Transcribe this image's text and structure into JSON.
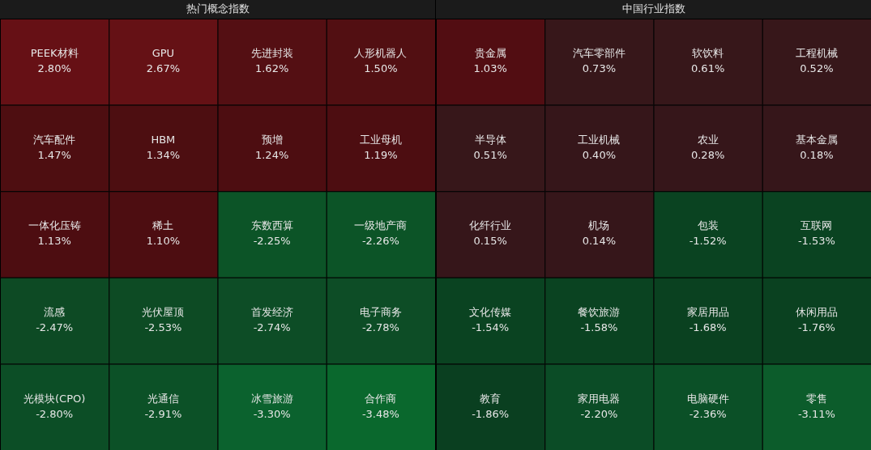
{
  "chart_data": [
    {
      "type": "other",
      "title": "热门概念指数",
      "categories": [
        "PEEK材料",
        "GPU",
        "先进封装",
        "人形机器人",
        "汽车配件",
        "HBM",
        "预增",
        "工业母机",
        "一体化压铸",
        "稀土",
        "东数西算",
        "一级地产商",
        "流感",
        "光伏屋顶",
        "首发经济",
        "电子商务",
        "光模块(CPO)",
        "光通信",
        "冰雪旅游",
        "合作商"
      ],
      "values": [
        2.8,
        2.67,
        1.62,
        1.5,
        1.47,
        1.34,
        1.24,
        1.19,
        1.13,
        1.1,
        -2.25,
        -2.26,
        -2.47,
        -2.53,
        -2.74,
        -2.78,
        -2.8,
        -2.91,
        -3.3,
        -3.48
      ],
      "value_labels": [
        "2.80%",
        "2.67%",
        "1.62%",
        "1.50%",
        "1.47%",
        "1.34%",
        "1.24%",
        "1.19%",
        "1.13%",
        "1.10%",
        "-2.25%",
        "-2.26%",
        "-2.47%",
        "-2.53%",
        "-2.74%",
        "-2.78%",
        "-2.80%",
        "-2.91%",
        "-3.30%",
        "-3.48%"
      ],
      "colors": [
        "#6b1116",
        "#6a1216",
        "#5c1015",
        "#5a1014",
        "#560f13",
        "#560f13",
        "#560f13",
        "#560f13",
        "#560f13",
        "#560f13",
        "#0d5a2a",
        "#0d5a2a",
        "#0e4f26",
        "#0e4f26",
        "#0e5128",
        "#0e5128",
        "#0d5228",
        "#0d5429",
        "#0b652f",
        "#0a6a2e"
      ]
    },
    {
      "type": "other",
      "title": "中国行业指数",
      "categories": [
        "贵金属",
        "汽车零部件",
        "软饮料",
        "工程机械",
        "半导体",
        "工业机械",
        "农业",
        "基本金属",
        "化纤行业",
        "机场",
        "包装",
        "互联网",
        "文化传媒",
        "餐饮旅游",
        "家居用品",
        "休闲用品",
        "教育",
        "家用电器",
        "电脑硬件",
        "零售"
      ],
      "values": [
        1.03,
        0.73,
        0.61,
        0.52,
        0.51,
        0.4,
        0.28,
        0.18,
        0.15,
        0.14,
        -1.52,
        -1.53,
        -1.54,
        -1.58,
        -1.68,
        -1.76,
        -1.86,
        -2.2,
        -2.36,
        -3.11
      ],
      "value_labels": [
        "1.03%",
        "0.73%",
        "0.61%",
        "0.52%",
        "0.51%",
        "0.40%",
        "0.28%",
        "0.18%",
        "0.15%",
        "0.14%",
        "-1.52%",
        "-1.53%",
        "-1.54%",
        "-1.58%",
        "-1.68%",
        "-1.76%",
        "-1.86%",
        "-2.20%",
        "-2.36%",
        "-3.11%"
      ],
      "colors": [
        "#5c0f14",
        "#3f1a1e",
        "#3f1a1e",
        "#3f1a1e",
        "#3f1a1e",
        "#3f1a1e",
        "#3f1a1e",
        "#3f1a1e",
        "#3f1a1e",
        "#3f1a1e",
        "#0b4a24",
        "#0b4a24",
        "#0b4a24",
        "#0b4a24",
        "#0b4723",
        "#0b4723",
        "#0b4523",
        "#0c5129",
        "#0c552a",
        "#0c5f2c"
      ]
    }
  ]
}
